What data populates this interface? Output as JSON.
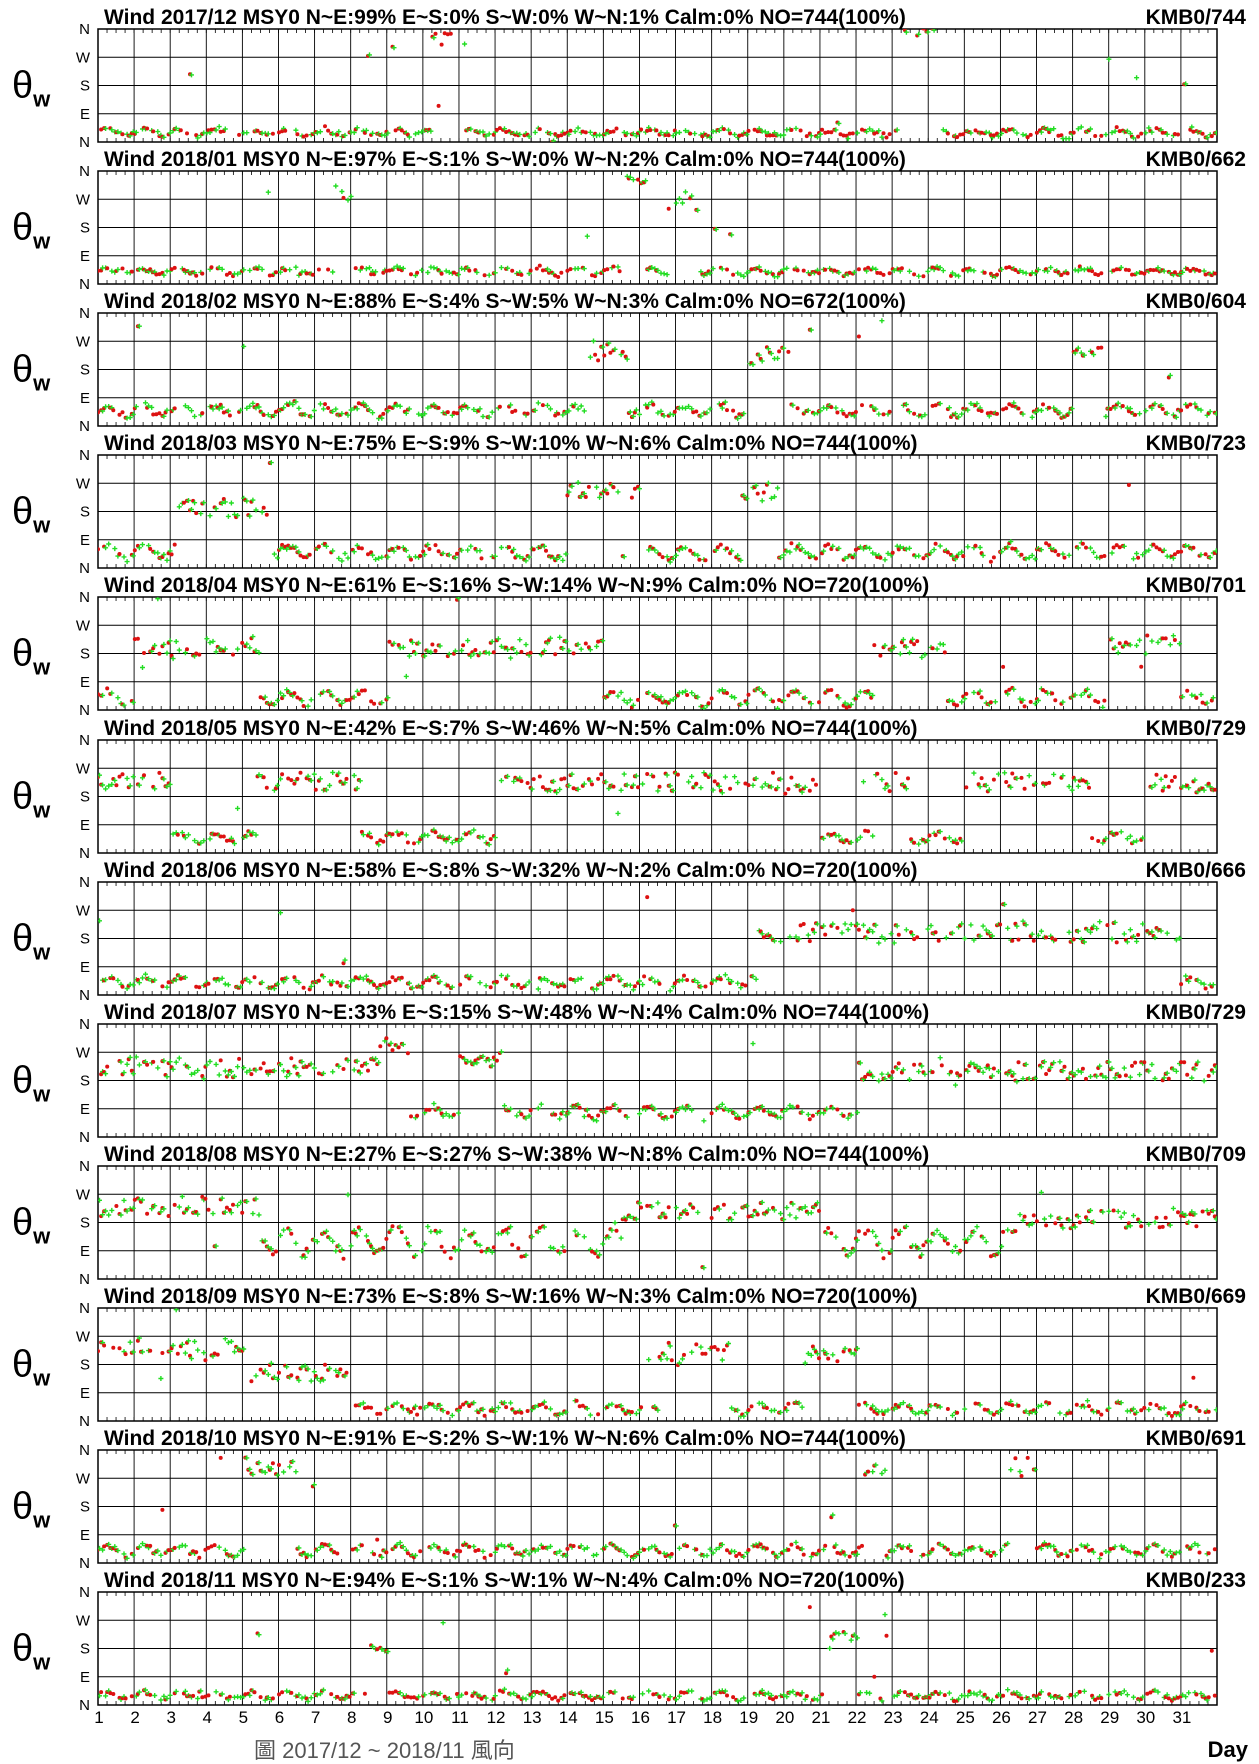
{
  "chart_data": {
    "type": "scatter",
    "x_axis": {
      "title": "Day",
      "ticks": [
        "1",
        "2",
        "3",
        "4",
        "5",
        "6",
        "7",
        "8",
        "9",
        "10",
        "11",
        "12",
        "13",
        "14",
        "15",
        "16",
        "17",
        "18",
        "19",
        "20",
        "21",
        "22",
        "23",
        "24",
        "25",
        "26",
        "27",
        "28",
        "29",
        "30",
        "31"
      ],
      "range": [
        1,
        32
      ]
    },
    "y_axis": {
      "ticks_bottom_to_top": [
        "N",
        "E",
        "S",
        "W",
        "N"
      ],
      "range_deg": [
        0,
        360
      ]
    },
    "series_colors": {
      "red_dots": "#dd1111",
      "green_crosses": "#22dd22"
    },
    "bottom_caption": "圖 2017/12 ~ 2018/11 風向",
    "panels": [
      {
        "title": "Wind 2017/12 MSY0 N~E:99% E~S:0% S~W:0% W~N:1% Calm:0%  NO=744(100%)",
        "right": "KMB0/744",
        "ylabel": "θ",
        "ysub": "w",
        "base": 30,
        "amp": 10,
        "events": [
          {
            "d": 10.2,
            "dur": 1.0,
            "deg": 330
          },
          {
            "d": 23.2,
            "dur": 1.0,
            "deg": 340
          }
        ]
      },
      {
        "title": "Wind 2018/01 MSY0 N~E:97% E~S:1% S~W:0% W~N:2% Calm:0%  NO=744(100%)",
        "right": "KMB0/662",
        "ylabel": "θ",
        "ysub": "w",
        "base": 40,
        "amp": 10,
        "events": [
          {
            "d": 7.5,
            "dur": 0.5,
            "deg": 300
          },
          {
            "d": 15.5,
            "dur": 0.7,
            "deg": 330
          },
          {
            "d": 16.8,
            "dur": 0.8,
            "deg": 260
          }
        ]
      },
      {
        "title": "Wind 2018/02 MSY0 N~E:88% E~S:4% S~W:5% W~N:3% Calm:0%  NO=672(100%)",
        "right": "KMB0/604",
        "ylabel": "θ",
        "ysub": "w",
        "base": 50,
        "amp": 15,
        "events": [
          {
            "d": 14.5,
            "dur": 1.2,
            "deg": 240
          },
          {
            "d": 19.0,
            "dur": 1.2,
            "deg": 220
          },
          {
            "d": 28.0,
            "dur": 0.8,
            "deg": 250
          }
        ]
      },
      {
        "title": "Wind 2018/03 MSY0 N~E:75% E~S:9% S~W:10% W~N:6% Calm:0%  NO=744(100%)",
        "right": "KMB0/723",
        "ylabel": "θ",
        "ysub": "w",
        "base": 50,
        "amp": 20,
        "events": [
          {
            "d": 3.2,
            "dur": 2.5,
            "deg": 190
          },
          {
            "d": 14.0,
            "dur": 2.0,
            "deg": 250
          },
          {
            "d": 18.8,
            "dur": 1.0,
            "deg": 240
          }
        ]
      },
      {
        "title": "Wind 2018/04 MSY0 N~E:61% E~S:16% S~W:14% W~N:9% Calm:0%  NO=720(100%)",
        "right": "KMB0/701",
        "ylabel": "θ",
        "ysub": "w",
        "base": 40,
        "amp": 20,
        "events": [
          {
            "d": 2.0,
            "dur": 3.5,
            "deg": 200
          },
          {
            "d": 9.0,
            "dur": 6.0,
            "deg": 200
          },
          {
            "d": 22.5,
            "dur": 2.0,
            "deg": 190
          },
          {
            "d": 29.0,
            "dur": 2.0,
            "deg": 210
          }
        ]
      },
      {
        "title": "Wind 2018/05 MSY0 N~E:42% E~S:7% S~W:46% W~N:5% Calm:0%  NO=744(100%)",
        "right": "KMB0/729",
        "ylabel": "θ",
        "ysub": "w",
        "base": 50,
        "amp": 15,
        "events": [
          {
            "d": 1.0,
            "dur": 2.0,
            "deg": 230
          },
          {
            "d": 5.5,
            "dur": 2.8,
            "deg": 230
          },
          {
            "d": 12.0,
            "dur": 8.0,
            "deg": 225
          },
          {
            "d": 20.0,
            "dur": 1.0,
            "deg": 220
          },
          {
            "d": 22.5,
            "dur": 1.0,
            "deg": 230
          },
          {
            "d": 25.0,
            "dur": 3.5,
            "deg": 230
          },
          {
            "d": 30.0,
            "dur": 2.0,
            "deg": 220
          }
        ]
      },
      {
        "title": "Wind 2018/06 MSY0 N~E:58% E~S:8% S~W:32% W~N:2% Calm:0%  NO=720(100%)",
        "right": "KMB0/666",
        "ylabel": "θ",
        "ysub": "w",
        "base": 40,
        "amp": 15,
        "events": [
          {
            "d": 19.2,
            "dur": 11.8,
            "deg": 200
          }
        ]
      },
      {
        "title": "Wind 2018/07 MSY0 N~E:33% E~S:15% S~W:48% W~N:4% Calm:0%  NO=744(100%)",
        "right": "KMB0/729",
        "ylabel": "θ",
        "ysub": "w",
        "base": 80,
        "amp": 15,
        "events": [
          {
            "d": 1.0,
            "dur": 7.8,
            "deg": 220
          },
          {
            "d": 8.8,
            "dur": 0.8,
            "deg": 290
          },
          {
            "d": 11.0,
            "dur": 1.2,
            "deg": 240
          },
          {
            "d": 22.0,
            "dur": 10.0,
            "deg": 210
          }
        ]
      },
      {
        "title": "Wind 2018/08 MSY0 N~E:27% E~S:27% S~W:38% W~N:8% Calm:0%  NO=744(100%)",
        "right": "KMB0/709",
        "ylabel": "θ",
        "ysub": "w",
        "base": 120,
        "amp": 40,
        "events": [
          {
            "d": 1.0,
            "dur": 4.5,
            "deg": 230
          },
          {
            "d": 15.5,
            "dur": 5.5,
            "deg": 220
          },
          {
            "d": 26.5,
            "dur": 5.5,
            "deg": 190
          }
        ]
      },
      {
        "title": "Wind 2018/09 MSY0 N~E:73% E~S:8% S~W:16% W~N:3% Calm:0%  NO=720(100%)",
        "right": "KMB0/669",
        "ylabel": "θ",
        "ysub": "w",
        "base": 40,
        "amp": 15,
        "events": [
          {
            "d": 1.0,
            "dur": 4.0,
            "deg": 235
          },
          {
            "d": 5.0,
            "dur": 3.0,
            "deg": 150
          },
          {
            "d": 16.5,
            "dur": 2.0,
            "deg": 220
          },
          {
            "d": 20.5,
            "dur": 1.5,
            "deg": 210
          }
        ]
      },
      {
        "title": "Wind 2018/10 MSY0 N~E:91% E~S:2% S~W:1% W~N:6% Calm:0%  NO=744(100%)",
        "right": "KMB0/691",
        "ylabel": "θ",
        "ysub": "w",
        "base": 40,
        "amp": 15,
        "events": [
          {
            "d": 5.0,
            "dur": 1.5,
            "deg": 310
          },
          {
            "d": 22.2,
            "dur": 0.6,
            "deg": 300
          },
          {
            "d": 26.2,
            "dur": 0.8,
            "deg": 310
          }
        ]
      },
      {
        "title": "Wind 2018/11 MSY0 N~E:94% E~S:1% S~W:1% W~N:4% Calm:0%  NO=720(100%)",
        "right": "KMB0/233",
        "ylabel": "θ",
        "ysub": "w",
        "base": 30,
        "amp": 10,
        "events": [
          {
            "d": 8.4,
            "dur": 0.6,
            "deg": 200
          },
          {
            "d": 21.2,
            "dur": 0.8,
            "deg": 200
          }
        ]
      }
    ]
  }
}
